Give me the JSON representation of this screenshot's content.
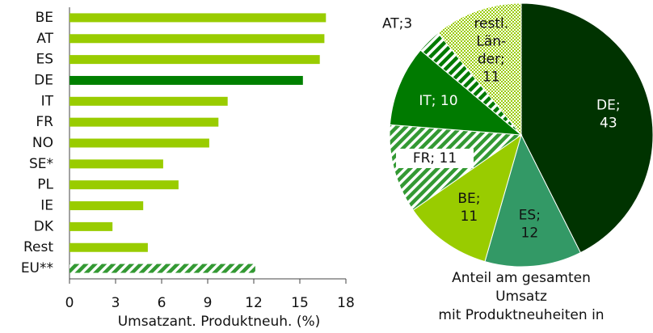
{
  "chart_data": [
    {
      "type": "barh",
      "categories": [
        "BE",
        "AT",
        "ES",
        "DE",
        "IT",
        "FR",
        "NO",
        "SE*",
        "PL",
        "IE",
        "DK",
        "Rest",
        "EU**"
      ],
      "values": [
        16.7,
        16.6,
        16.3,
        15.2,
        10.3,
        9.7,
        9.1,
        6.1,
        7.1,
        4.8,
        2.8,
        5.1,
        12.1
      ],
      "colors": [
        "#99cc00",
        "#99cc00",
        "#99cc00",
        "#008000",
        "#99cc00",
        "#99cc00",
        "#99cc00",
        "#99cc00",
        "#99cc00",
        "#99cc00",
        "#99cc00",
        "#99cc00",
        "#339933"
      ],
      "pattern": [
        null,
        null,
        null,
        null,
        null,
        null,
        null,
        null,
        null,
        null,
        null,
        null,
        "hatch"
      ],
      "xlabel": "Umsatzant. Produktneuh. (%)",
      "xlim": [
        0,
        18
      ],
      "xticks": [
        0,
        3,
        6,
        9,
        12,
        15,
        18
      ]
    },
    {
      "type": "pie",
      "title": "Anteil am gesamten\nUmsatz\nmit Produktneuheiten in",
      "values": [
        43,
        12,
        11,
        11,
        10,
        3,
        11
      ],
      "value_labels": [
        "DE;\n43",
        "ES;\n12",
        "BE;\n11",
        "FR; 11",
        "IT; 10",
        "AT;3",
        "restl.\nLän-\nder;\n11"
      ],
      "colors": [
        "#003300",
        "#339966",
        "#99cc00",
        "#339933",
        "#007a00",
        "#007a00",
        "#99cc00"
      ],
      "pattern": [
        null,
        null,
        null,
        "hatch",
        null,
        "hatch",
        "dots"
      ],
      "label_colors": [
        "#ffffff",
        "#111111",
        "#111111",
        "#111111",
        "#ffffff",
        "#111111",
        "#111111"
      ]
    }
  ]
}
